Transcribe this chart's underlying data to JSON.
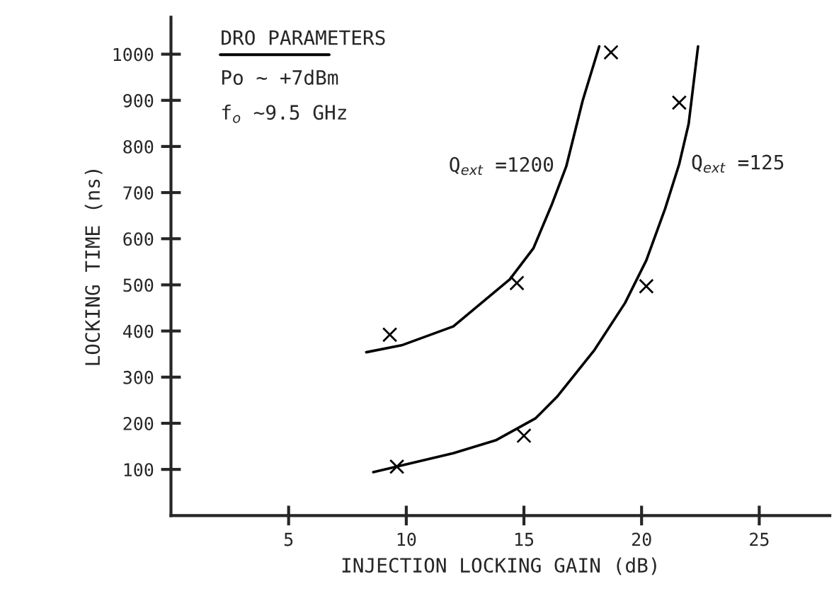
{
  "chart_data": {
    "type": "line",
    "xlabel": "INJECTION LOCKING GAIN (dB)",
    "ylabel": "LOCKING TIME (ns)",
    "xlim": [
      0,
      28
    ],
    "ylim": [
      0,
      1080
    ],
    "xticks": [
      5,
      10,
      15,
      20,
      25
    ],
    "yticks": [
      100,
      200,
      300,
      400,
      500,
      600,
      700,
      800,
      900,
      1000
    ],
    "grid": false,
    "legend": false,
    "annotations": [
      "DRO PARAMETERS",
      "Po ∼ +7dBm",
      "f$_{o}$ ∼9.5 GHz"
    ],
    "series": [
      {
        "name": "Q$_{ext}$ =1200",
        "color": "#000000",
        "marker": "none",
        "x": [
          8.3,
          9.8,
          12.0,
          14.4,
          15.4,
          16.2,
          16.8,
          17.5,
          18.2
        ],
        "values": [
          354,
          369,
          410,
          512,
          579,
          676,
          757,
          900,
          1017
        ]
      },
      {
        "name": "Q$_{ext}$ =125",
        "color": "#000000",
        "marker": "none",
        "x": [
          8.6,
          12.0,
          13.8,
          15.5,
          16.4,
          18.0,
          19.3,
          20.2,
          21.0,
          21.6,
          22.0,
          22.4
        ],
        "values": [
          94,
          135,
          163,
          211,
          257,
          359,
          461,
          553,
          665,
          762,
          849,
          1017
        ]
      },
      {
        "type": "scatter",
        "color": "#000000",
        "marker": "cross",
        "x": [
          9.3,
          14.7,
          18.7
        ],
        "values": [
          392,
          504,
          1004
        ]
      },
      {
        "type": "scatter",
        "color": "#000000",
        "marker": "cross",
        "x": [
          9.6,
          15.0,
          20.2,
          21.6
        ],
        "values": [
          106,
          173,
          497,
          895
        ]
      }
    ]
  }
}
